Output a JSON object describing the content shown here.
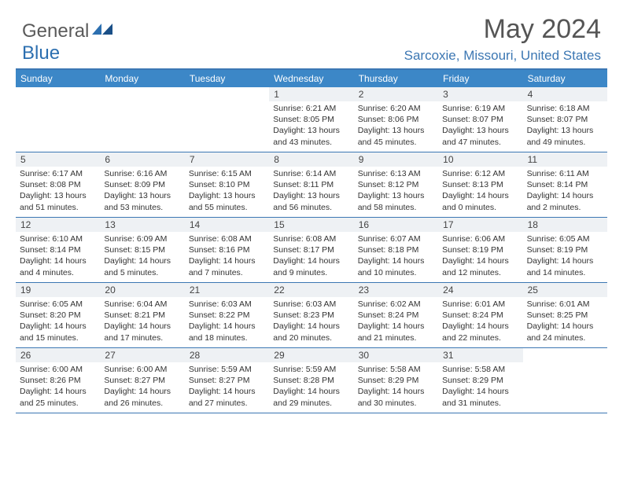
{
  "logo": {
    "general": "General",
    "blue": "Blue"
  },
  "title": "May 2024",
  "location": "Sarcoxie, Missouri, United States",
  "colors": {
    "header_bg": "#3c87c7",
    "border": "#3c77b3",
    "daynum_bg": "#eef1f4",
    "logo_gray": "#5a5a5a",
    "logo_blue": "#2c6fb0"
  },
  "weekdays": [
    "Sunday",
    "Monday",
    "Tuesday",
    "Wednesday",
    "Thursday",
    "Friday",
    "Saturday"
  ],
  "weeks": [
    [
      null,
      null,
      null,
      {
        "n": "1",
        "sr": "6:21 AM",
        "ss": "8:05 PM",
        "dl": "13 hours and 43 minutes."
      },
      {
        "n": "2",
        "sr": "6:20 AM",
        "ss": "8:06 PM",
        "dl": "13 hours and 45 minutes."
      },
      {
        "n": "3",
        "sr": "6:19 AM",
        "ss": "8:07 PM",
        "dl": "13 hours and 47 minutes."
      },
      {
        "n": "4",
        "sr": "6:18 AM",
        "ss": "8:07 PM",
        "dl": "13 hours and 49 minutes."
      }
    ],
    [
      {
        "n": "5",
        "sr": "6:17 AM",
        "ss": "8:08 PM",
        "dl": "13 hours and 51 minutes."
      },
      {
        "n": "6",
        "sr": "6:16 AM",
        "ss": "8:09 PM",
        "dl": "13 hours and 53 minutes."
      },
      {
        "n": "7",
        "sr": "6:15 AM",
        "ss": "8:10 PM",
        "dl": "13 hours and 55 minutes."
      },
      {
        "n": "8",
        "sr": "6:14 AM",
        "ss": "8:11 PM",
        "dl": "13 hours and 56 minutes."
      },
      {
        "n": "9",
        "sr": "6:13 AM",
        "ss": "8:12 PM",
        "dl": "13 hours and 58 minutes."
      },
      {
        "n": "10",
        "sr": "6:12 AM",
        "ss": "8:13 PM",
        "dl": "14 hours and 0 minutes."
      },
      {
        "n": "11",
        "sr": "6:11 AM",
        "ss": "8:14 PM",
        "dl": "14 hours and 2 minutes."
      }
    ],
    [
      {
        "n": "12",
        "sr": "6:10 AM",
        "ss": "8:14 PM",
        "dl": "14 hours and 4 minutes."
      },
      {
        "n": "13",
        "sr": "6:09 AM",
        "ss": "8:15 PM",
        "dl": "14 hours and 5 minutes."
      },
      {
        "n": "14",
        "sr": "6:08 AM",
        "ss": "8:16 PM",
        "dl": "14 hours and 7 minutes."
      },
      {
        "n": "15",
        "sr": "6:08 AM",
        "ss": "8:17 PM",
        "dl": "14 hours and 9 minutes."
      },
      {
        "n": "16",
        "sr": "6:07 AM",
        "ss": "8:18 PM",
        "dl": "14 hours and 10 minutes."
      },
      {
        "n": "17",
        "sr": "6:06 AM",
        "ss": "8:19 PM",
        "dl": "14 hours and 12 minutes."
      },
      {
        "n": "18",
        "sr": "6:05 AM",
        "ss": "8:19 PM",
        "dl": "14 hours and 14 minutes."
      }
    ],
    [
      {
        "n": "19",
        "sr": "6:05 AM",
        "ss": "8:20 PM",
        "dl": "14 hours and 15 minutes."
      },
      {
        "n": "20",
        "sr": "6:04 AM",
        "ss": "8:21 PM",
        "dl": "14 hours and 17 minutes."
      },
      {
        "n": "21",
        "sr": "6:03 AM",
        "ss": "8:22 PM",
        "dl": "14 hours and 18 minutes."
      },
      {
        "n": "22",
        "sr": "6:03 AM",
        "ss": "8:23 PM",
        "dl": "14 hours and 20 minutes."
      },
      {
        "n": "23",
        "sr": "6:02 AM",
        "ss": "8:24 PM",
        "dl": "14 hours and 21 minutes."
      },
      {
        "n": "24",
        "sr": "6:01 AM",
        "ss": "8:24 PM",
        "dl": "14 hours and 22 minutes."
      },
      {
        "n": "25",
        "sr": "6:01 AM",
        "ss": "8:25 PM",
        "dl": "14 hours and 24 minutes."
      }
    ],
    [
      {
        "n": "26",
        "sr": "6:00 AM",
        "ss": "8:26 PM",
        "dl": "14 hours and 25 minutes."
      },
      {
        "n": "27",
        "sr": "6:00 AM",
        "ss": "8:27 PM",
        "dl": "14 hours and 26 minutes."
      },
      {
        "n": "28",
        "sr": "5:59 AM",
        "ss": "8:27 PM",
        "dl": "14 hours and 27 minutes."
      },
      {
        "n": "29",
        "sr": "5:59 AM",
        "ss": "8:28 PM",
        "dl": "14 hours and 29 minutes."
      },
      {
        "n": "30",
        "sr": "5:58 AM",
        "ss": "8:29 PM",
        "dl": "14 hours and 30 minutes."
      },
      {
        "n": "31",
        "sr": "5:58 AM",
        "ss": "8:29 PM",
        "dl": "14 hours and 31 minutes."
      },
      null
    ]
  ],
  "labels": {
    "sunrise": "Sunrise:",
    "sunset": "Sunset:",
    "daylight": "Daylight:"
  }
}
